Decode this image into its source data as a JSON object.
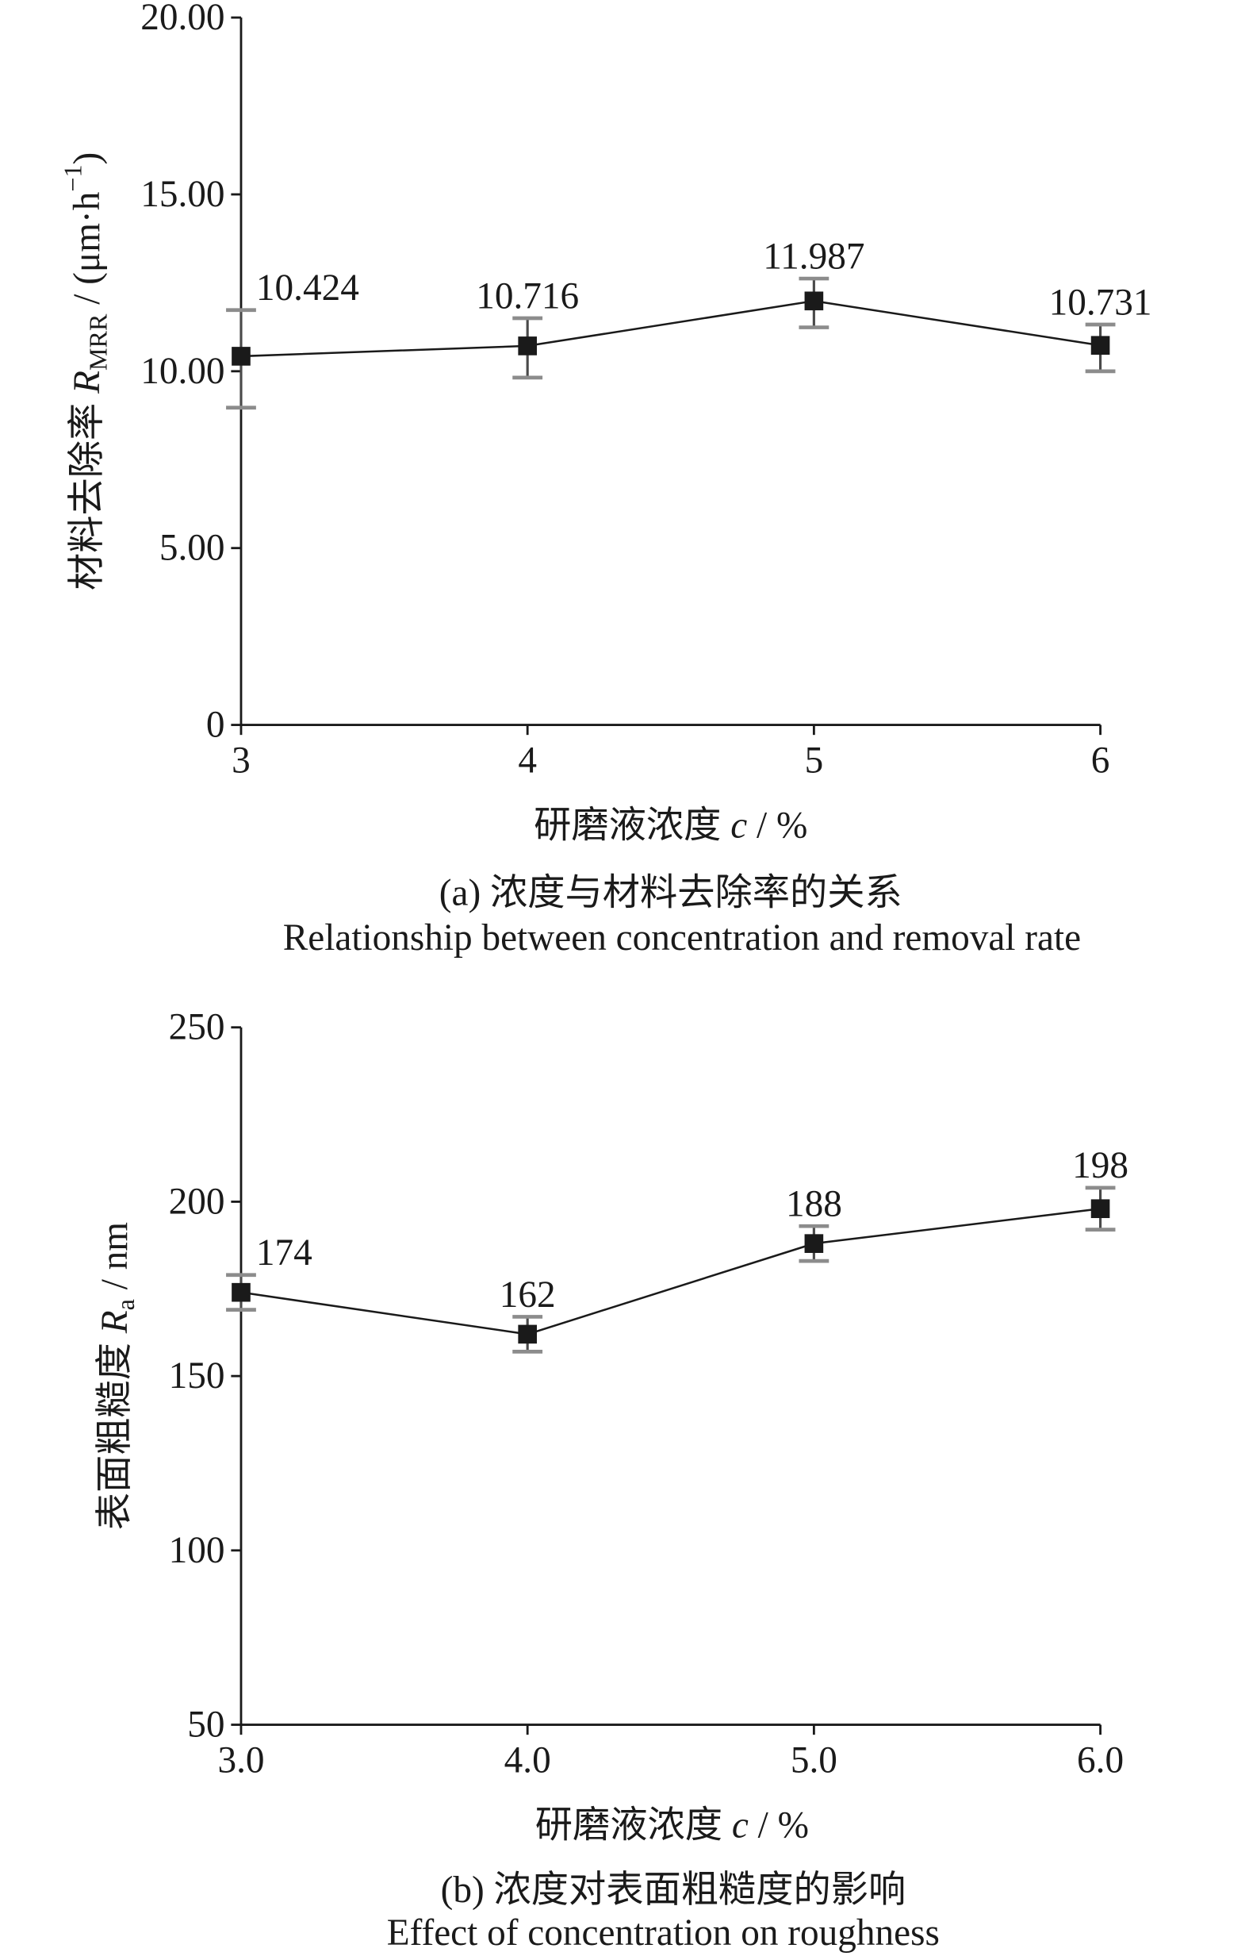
{
  "chart_data": [
    {
      "type": "line",
      "x": [
        3,
        4,
        5,
        6
      ],
      "y": [
        10.424,
        10.716,
        11.987,
        10.731
      ],
      "err_low": [
        8.97,
        9.82,
        11.24,
        10.0
      ],
      "err_high": [
        11.73,
        11.5,
        12.62,
        11.32
      ],
      "xlim": [
        3,
        6
      ],
      "x_ticks": [
        3,
        4,
        5,
        6
      ],
      "x_tick_labels": [
        "3",
        "4",
        "5",
        "6"
      ],
      "ylim": [
        0,
        20
      ],
      "y_ticks": [
        0,
        5,
        10,
        15,
        20
      ],
      "y_tick_labels": [
        "0",
        "5.00",
        "10.00",
        "15.00",
        "20.00"
      ],
      "xlabel": [
        {
          "text": "研磨液浓度 "
        },
        {
          "text": "c",
          "italic": true
        },
        {
          "text": " / %"
        }
      ],
      "ylabel": [
        {
          "text": "材料去除率 "
        },
        {
          "text": "R",
          "italic": true
        },
        {
          "text": "MRR",
          "sub": true
        },
        {
          "text": " / (μm·h"
        },
        {
          "text": "−1",
          "sup": true
        },
        {
          "text": ")"
        }
      ],
      "caption": "(a) 浓度与材料去除率的关系",
      "caption_en": "Relationship between concentration and removal rate",
      "grid": false,
      "show_legend": false,
      "data_labels_shown": true,
      "color": "#1a1a1a",
      "errorbar_color": "#4a4a4a",
      "errorbar_cap_color": "#8c8c8c"
    },
    {
      "type": "line",
      "x": [
        3.0,
        4.0,
        5.0,
        6.0
      ],
      "y": [
        174,
        162,
        188,
        198
      ],
      "err_low": [
        169,
        157,
        183,
        192
      ],
      "err_high": [
        179,
        167,
        193,
        204
      ],
      "xlim": [
        3,
        6
      ],
      "x_ticks": [
        3,
        4,
        5,
        6
      ],
      "x_tick_labels": [
        "3.0",
        "4.0",
        "5.0",
        "6.0"
      ],
      "ylim": [
        50,
        250
      ],
      "y_ticks": [
        50,
        100,
        150,
        200,
        250
      ],
      "y_tick_labels": [
        "50",
        "100",
        "150",
        "200",
        "250"
      ],
      "xlabel": [
        {
          "text": "研磨液浓度 "
        },
        {
          "text": "c",
          "italic": true
        },
        {
          "text": " / %"
        }
      ],
      "ylabel": [
        {
          "text": "表面粗糙度 "
        },
        {
          "text": "R",
          "italic": true
        },
        {
          "text": "a",
          "sub": true
        },
        {
          "text": " / nm"
        }
      ],
      "caption": "(b) 浓度对表面粗糙度的影响",
      "caption_en": "Effect of concentration on roughness",
      "grid": false,
      "show_legend": false,
      "data_labels_shown": true,
      "color": "#1a1a1a",
      "errorbar_color": "#4a4a4a",
      "errorbar_cap_color": "#8c8c8c"
    }
  ]
}
